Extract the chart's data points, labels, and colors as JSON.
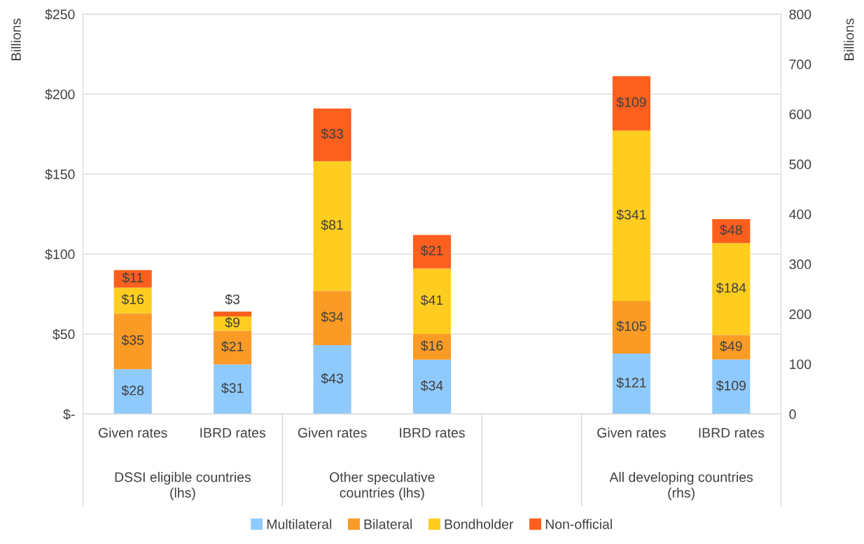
{
  "chart_data": {
    "type": "bar",
    "stacked": true,
    "categories": [
      "Given rates",
      "IBRD rates",
      "Given rates",
      "IBRD rates",
      null,
      "Given rates",
      "IBRD rates"
    ],
    "series": [
      {
        "name": "Multilateral",
        "color": "#8fcafd",
        "values": [
          28,
          31,
          43,
          34,
          null,
          null,
          null
        ],
        "value_labels": [
          "$28",
          "$31",
          "$43",
          "$34",
          null,
          null,
          null
        ]
      },
      {
        "name": "Bilateral",
        "color": "#fa9b26",
        "values": [
          35,
          21,
          34,
          16,
          null,
          null,
          null
        ],
        "value_labels": [
          "$35",
          "$21",
          "$34",
          "$16",
          null,
          null,
          null
        ]
      },
      {
        "name": "Bondholder",
        "color": "#fecd1f",
        "values": [
          16,
          9,
          81,
          41,
          null,
          null,
          null
        ],
        "value_labels": [
          "$16",
          "$9",
          "$81",
          "$41",
          null,
          null,
          null
        ]
      },
      {
        "name": "Non-official",
        "color": "#fd601e",
        "values": [
          11,
          3,
          33,
          21,
          null,
          null,
          null
        ],
        "value_labels": [
          "$11",
          "$3",
          "$33",
          "$21",
          null,
          null,
          null
        ]
      },
      {
        "color": "#8fcafd",
        "axis": "y2",
        "values": [
          null,
          null,
          null,
          null,
          null,
          121,
          109
        ],
        "value_labels": [
          null,
          null,
          null,
          null,
          null,
          "$121",
          "$109"
        ]
      },
      {
        "color": "#fa9b26",
        "axis": "y2",
        "values": [
          null,
          null,
          null,
          null,
          null,
          105,
          49
        ],
        "value_labels": [
          null,
          null,
          null,
          null,
          null,
          "$105",
          "$49"
        ]
      },
      {
        "color": "#fecd1f",
        "axis": "y2",
        "values": [
          null,
          null,
          null,
          null,
          null,
          341,
          184
        ],
        "value_labels": [
          null,
          null,
          null,
          null,
          null,
          "$341",
          "$184"
        ]
      },
      {
        "color": "#fd601e",
        "axis": "y2",
        "values": [
          null,
          null,
          null,
          null,
          null,
          109,
          48
        ],
        "value_labels": [
          null,
          null,
          null,
          null,
          null,
          "$109",
          "$48"
        ]
      }
    ],
    "ylabel": "Billions",
    "y2label": "Billions",
    "ylim": [
      0,
      250
    ],
    "yticks": [
      {
        "value": 0,
        "label": "$-"
      },
      {
        "value": 50,
        "label": "$50"
      },
      {
        "value": 100,
        "label": "$100"
      },
      {
        "value": 150,
        "label": "$150"
      },
      {
        "value": 200,
        "label": "$200"
      },
      {
        "value": 250,
        "label": "$250"
      }
    ],
    "y2lim": [
      0,
      800
    ],
    "y2ticks": [
      0,
      100,
      200,
      300,
      400,
      500,
      600,
      700,
      800
    ],
    "annotations": [
      "DSSI eligible countries\n(lhs)",
      "Other speculative\ncountries (lhs)",
      "All developing countries\n(rhs)"
    ],
    "grid": "y",
    "legend": "bottom"
  }
}
